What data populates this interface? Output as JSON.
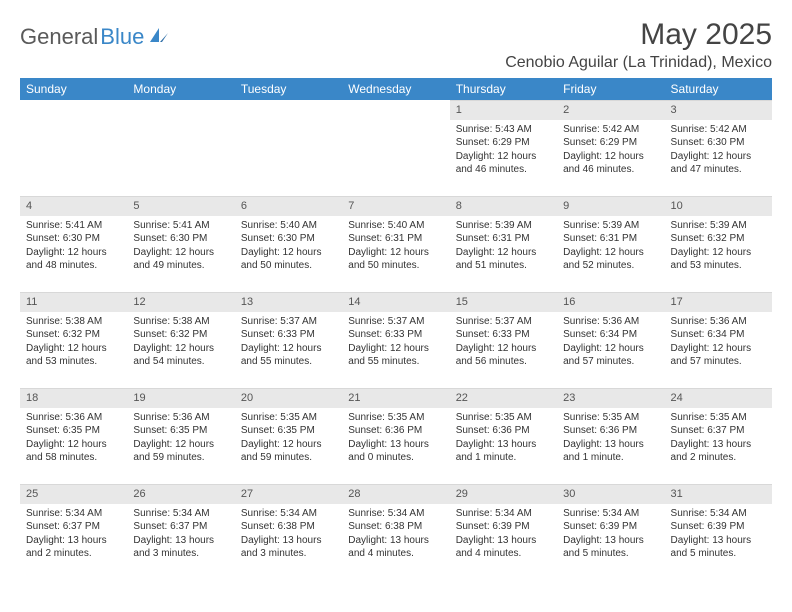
{
  "brand": {
    "name_gray": "General",
    "name_blue": "Blue"
  },
  "title": "May 2025",
  "location": "Cenobio Aguilar (La Trinidad), Mexico",
  "header_bg": "#3a87c8",
  "daynum_bg": "#e8e8e8",
  "weekdays": [
    "Sunday",
    "Monday",
    "Tuesday",
    "Wednesday",
    "Thursday",
    "Friday",
    "Saturday"
  ],
  "weeks": [
    [
      {
        "n": "",
        "sun": "",
        "set": "",
        "day": ""
      },
      {
        "n": "",
        "sun": "",
        "set": "",
        "day": ""
      },
      {
        "n": "",
        "sun": "",
        "set": "",
        "day": ""
      },
      {
        "n": "",
        "sun": "",
        "set": "",
        "day": ""
      },
      {
        "n": "1",
        "sun": "Sunrise: 5:43 AM",
        "set": "Sunset: 6:29 PM",
        "day": "Daylight: 12 hours and 46 minutes."
      },
      {
        "n": "2",
        "sun": "Sunrise: 5:42 AM",
        "set": "Sunset: 6:29 PM",
        "day": "Daylight: 12 hours and 46 minutes."
      },
      {
        "n": "3",
        "sun": "Sunrise: 5:42 AM",
        "set": "Sunset: 6:30 PM",
        "day": "Daylight: 12 hours and 47 minutes."
      }
    ],
    [
      {
        "n": "4",
        "sun": "Sunrise: 5:41 AM",
        "set": "Sunset: 6:30 PM",
        "day": "Daylight: 12 hours and 48 minutes."
      },
      {
        "n": "5",
        "sun": "Sunrise: 5:41 AM",
        "set": "Sunset: 6:30 PM",
        "day": "Daylight: 12 hours and 49 minutes."
      },
      {
        "n": "6",
        "sun": "Sunrise: 5:40 AM",
        "set": "Sunset: 6:30 PM",
        "day": "Daylight: 12 hours and 50 minutes."
      },
      {
        "n": "7",
        "sun": "Sunrise: 5:40 AM",
        "set": "Sunset: 6:31 PM",
        "day": "Daylight: 12 hours and 50 minutes."
      },
      {
        "n": "8",
        "sun": "Sunrise: 5:39 AM",
        "set": "Sunset: 6:31 PM",
        "day": "Daylight: 12 hours and 51 minutes."
      },
      {
        "n": "9",
        "sun": "Sunrise: 5:39 AM",
        "set": "Sunset: 6:31 PM",
        "day": "Daylight: 12 hours and 52 minutes."
      },
      {
        "n": "10",
        "sun": "Sunrise: 5:39 AM",
        "set": "Sunset: 6:32 PM",
        "day": "Daylight: 12 hours and 53 minutes."
      }
    ],
    [
      {
        "n": "11",
        "sun": "Sunrise: 5:38 AM",
        "set": "Sunset: 6:32 PM",
        "day": "Daylight: 12 hours and 53 minutes."
      },
      {
        "n": "12",
        "sun": "Sunrise: 5:38 AM",
        "set": "Sunset: 6:32 PM",
        "day": "Daylight: 12 hours and 54 minutes."
      },
      {
        "n": "13",
        "sun": "Sunrise: 5:37 AM",
        "set": "Sunset: 6:33 PM",
        "day": "Daylight: 12 hours and 55 minutes."
      },
      {
        "n": "14",
        "sun": "Sunrise: 5:37 AM",
        "set": "Sunset: 6:33 PM",
        "day": "Daylight: 12 hours and 55 minutes."
      },
      {
        "n": "15",
        "sun": "Sunrise: 5:37 AM",
        "set": "Sunset: 6:33 PM",
        "day": "Daylight: 12 hours and 56 minutes."
      },
      {
        "n": "16",
        "sun": "Sunrise: 5:36 AM",
        "set": "Sunset: 6:34 PM",
        "day": "Daylight: 12 hours and 57 minutes."
      },
      {
        "n": "17",
        "sun": "Sunrise: 5:36 AM",
        "set": "Sunset: 6:34 PM",
        "day": "Daylight: 12 hours and 57 minutes."
      }
    ],
    [
      {
        "n": "18",
        "sun": "Sunrise: 5:36 AM",
        "set": "Sunset: 6:35 PM",
        "day": "Daylight: 12 hours and 58 minutes."
      },
      {
        "n": "19",
        "sun": "Sunrise: 5:36 AM",
        "set": "Sunset: 6:35 PM",
        "day": "Daylight: 12 hours and 59 minutes."
      },
      {
        "n": "20",
        "sun": "Sunrise: 5:35 AM",
        "set": "Sunset: 6:35 PM",
        "day": "Daylight: 12 hours and 59 minutes."
      },
      {
        "n": "21",
        "sun": "Sunrise: 5:35 AM",
        "set": "Sunset: 6:36 PM",
        "day": "Daylight: 13 hours and 0 minutes."
      },
      {
        "n": "22",
        "sun": "Sunrise: 5:35 AM",
        "set": "Sunset: 6:36 PM",
        "day": "Daylight: 13 hours and 1 minute."
      },
      {
        "n": "23",
        "sun": "Sunrise: 5:35 AM",
        "set": "Sunset: 6:36 PM",
        "day": "Daylight: 13 hours and 1 minute."
      },
      {
        "n": "24",
        "sun": "Sunrise: 5:35 AM",
        "set": "Sunset: 6:37 PM",
        "day": "Daylight: 13 hours and 2 minutes."
      }
    ],
    [
      {
        "n": "25",
        "sun": "Sunrise: 5:34 AM",
        "set": "Sunset: 6:37 PM",
        "day": "Daylight: 13 hours and 2 minutes."
      },
      {
        "n": "26",
        "sun": "Sunrise: 5:34 AM",
        "set": "Sunset: 6:37 PM",
        "day": "Daylight: 13 hours and 3 minutes."
      },
      {
        "n": "27",
        "sun": "Sunrise: 5:34 AM",
        "set": "Sunset: 6:38 PM",
        "day": "Daylight: 13 hours and 3 minutes."
      },
      {
        "n": "28",
        "sun": "Sunrise: 5:34 AM",
        "set": "Sunset: 6:38 PM",
        "day": "Daylight: 13 hours and 4 minutes."
      },
      {
        "n": "29",
        "sun": "Sunrise: 5:34 AM",
        "set": "Sunset: 6:39 PM",
        "day": "Daylight: 13 hours and 4 minutes."
      },
      {
        "n": "30",
        "sun": "Sunrise: 5:34 AM",
        "set": "Sunset: 6:39 PM",
        "day": "Daylight: 13 hours and 5 minutes."
      },
      {
        "n": "31",
        "sun": "Sunrise: 5:34 AM",
        "set": "Sunset: 6:39 PM",
        "day": "Daylight: 13 hours and 5 minutes."
      }
    ]
  ]
}
